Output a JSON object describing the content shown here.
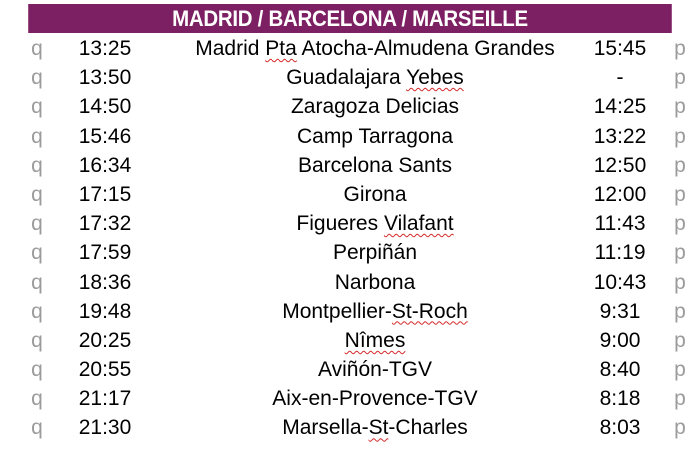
{
  "header": {
    "title": "MADRID / BARCELONA / MARSEILLE"
  },
  "colors": {
    "header_bg": "#7d1f63",
    "header_text": "#ffffff",
    "arrow": "#9b9b9b",
    "spell_underline": "#d62828"
  },
  "icons": {
    "left": "q",
    "right": "p"
  },
  "rows": [
    {
      "dep": "13:25",
      "station": [
        "Madrid ",
        {
          "t": "Pta",
          "sq": true
        },
        " Atocha-Almudena Grandes"
      ],
      "arr": "15:45"
    },
    {
      "dep": "13:50",
      "station": [
        "Guadalajara ",
        {
          "t": "Yebes",
          "sq": true
        }
      ],
      "arr": "-"
    },
    {
      "dep": "14:50",
      "station": [
        "Zaragoza Delicias"
      ],
      "arr": "14:25"
    },
    {
      "dep": "15:46",
      "station": [
        "Camp Tarragona"
      ],
      "arr": "13:22"
    },
    {
      "dep": "16:34",
      "station": [
        "Barcelona Sants"
      ],
      "arr": "12:50"
    },
    {
      "dep": "17:15",
      "station": [
        "Girona"
      ],
      "arr": "12:00"
    },
    {
      "dep": "17:32",
      "station": [
        "Figueres ",
        {
          "t": "Vilafant",
          "sq": true
        }
      ],
      "arr": "11:43"
    },
    {
      "dep": "17:59",
      "station": [
        "Perpiñán"
      ],
      "arr": "11:19"
    },
    {
      "dep": "18:36",
      "station": [
        "Narbona"
      ],
      "arr": "10:43"
    },
    {
      "dep": "19:48",
      "station": [
        "Montpellier-",
        {
          "t": "St-Roch",
          "sq": true
        }
      ],
      "arr": "9:31"
    },
    {
      "dep": "20:25",
      "station": [
        {
          "t": "Nîmes",
          "sq": true
        }
      ],
      "arr": "9:00"
    },
    {
      "dep": "20:55",
      "station": [
        "Aviñón-TGV"
      ],
      "arr": "8:40"
    },
    {
      "dep": "21:17",
      "station": [
        "Aix-en-Provence-TGV"
      ],
      "arr": "8:18"
    },
    {
      "dep": "21:30",
      "station": [
        "Marsella-",
        {
          "t": "St",
          "sq": true
        },
        "-Charles"
      ],
      "arr": "8:03"
    }
  ]
}
